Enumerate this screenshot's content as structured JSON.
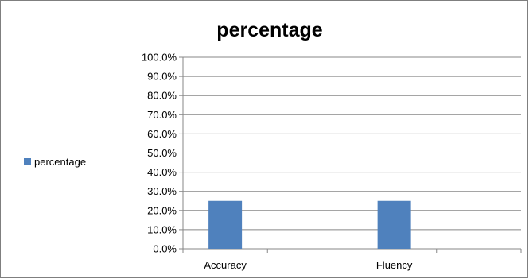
{
  "chart_data": {
    "type": "bar",
    "title": "percentage",
    "categories": [
      "Accuracy",
      "Fluency"
    ],
    "series": [
      {
        "name": "percentage",
        "values": [
          25.0,
          25.0
        ],
        "color": "#4f81bd"
      }
    ],
    "ylim": [
      0,
      100
    ],
    "y_ticks": [
      "0.0%",
      "10.0%",
      "20.0%",
      "30.0%",
      "40.0%",
      "50.0%",
      "60.0%",
      "70.0%",
      "80.0%",
      "90.0%",
      "100.0%"
    ],
    "xlabel": "",
    "ylabel": "",
    "grid": true,
    "legend_position": "left"
  }
}
